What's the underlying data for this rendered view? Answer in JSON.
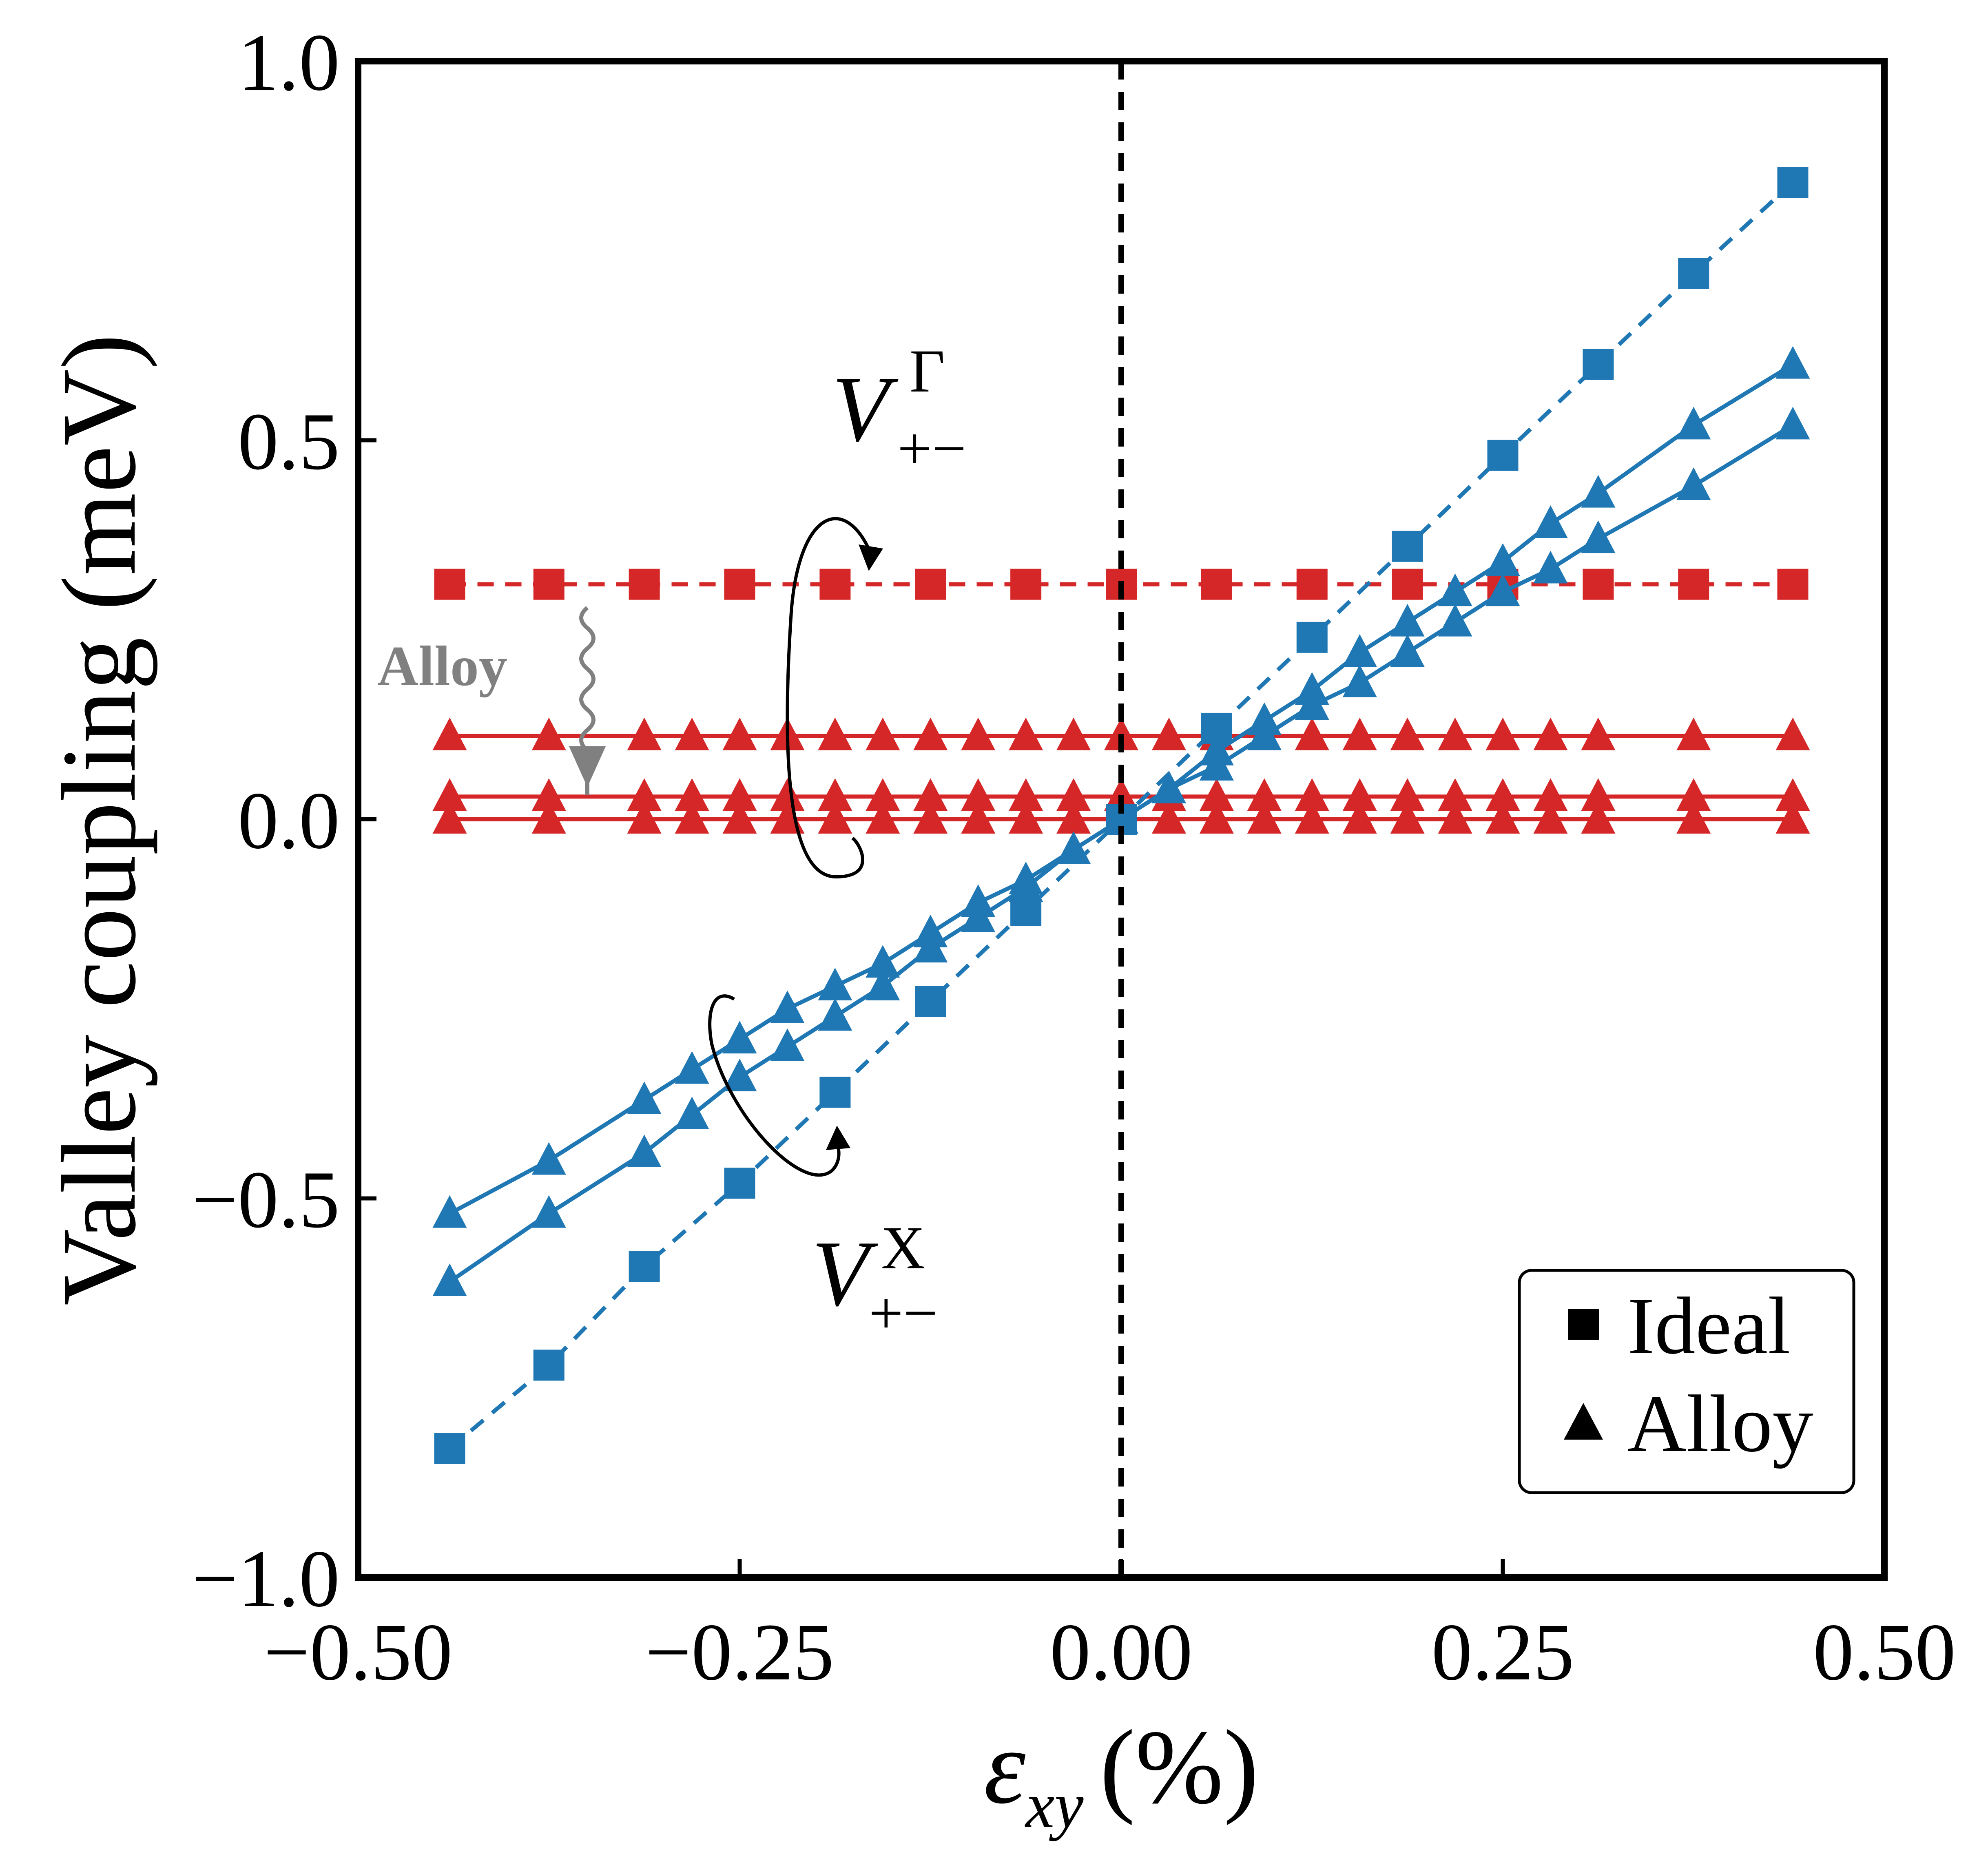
{
  "chart_data": {
    "type": "line",
    "title": "",
    "xlabel_symbol": "ε",
    "xlabel_subscript": "xy",
    "xlabel_unit": "(%)",
    "ylabel": "Valley coupling (meV)",
    "xlim": [
      -0.5,
      0.5
    ],
    "ylim": [
      -1.0,
      1.0
    ],
    "xticks": [
      -0.5,
      -0.25,
      0.0,
      0.25,
      0.5
    ],
    "xtick_labels": [
      "−0.50",
      "−0.25",
      "0.00",
      "0.25",
      "0.50"
    ],
    "yticks": [
      -1.0,
      -0.5,
      0.0,
      0.5,
      1.0
    ],
    "ytick_labels": [
      "−1.0",
      "−0.5",
      "0.0",
      "0.5",
      "1.0"
    ],
    "grid": false,
    "reference_line": {
      "x": 0.0,
      "style": "dashed",
      "color": "#000000"
    },
    "legend": {
      "position": "bottom-right",
      "entries": [
        {
          "label": "Ideal",
          "marker": "square"
        },
        {
          "label": "Alloy",
          "marker": "triangle"
        }
      ]
    },
    "annotations": {
      "gamma": {
        "main": "V",
        "sup": "Γ",
        "sub": "+−"
      },
      "x": {
        "main": "V",
        "sup": "X",
        "sub": "+−"
      },
      "alloy_note": "Alloy"
    },
    "colors": {
      "red": "#d62728",
      "blue": "#1f77b4",
      "gray": "#808080",
      "black": "#000000"
    },
    "series": [
      {
        "name": "V_Gamma Ideal",
        "group": "gamma",
        "marker": "square",
        "dash": "dashed",
        "color": "#d62728",
        "x": [
          -0.44,
          -0.375,
          -0.3125,
          -0.25,
          -0.1875,
          -0.125,
          -0.0625,
          0.0,
          0.0625,
          0.125,
          0.1875,
          0.25,
          0.3125,
          0.375,
          0.44
        ],
        "y": [
          0.31,
          0.31,
          0.31,
          0.31,
          0.31,
          0.31,
          0.31,
          0.31,
          0.31,
          0.31,
          0.31,
          0.31,
          0.31,
          0.31,
          0.31
        ]
      },
      {
        "name": "V_Gamma Alloy 1",
        "group": "gamma",
        "marker": "triangle",
        "dash": "solid",
        "color": "#d62728",
        "x": [
          -0.44,
          -0.375,
          -0.3125,
          -0.28125,
          -0.25,
          -0.21875,
          -0.1875,
          -0.15625,
          -0.125,
          -0.09375,
          -0.0625,
          -0.03125,
          0.0,
          0.03125,
          0.0625,
          0.09375,
          0.125,
          0.15625,
          0.1875,
          0.21875,
          0.25,
          0.28125,
          0.3125,
          0.375,
          0.44
        ],
        "y": [
          0.11,
          0.11,
          0.11,
          0.11,
          0.11,
          0.11,
          0.11,
          0.11,
          0.11,
          0.11,
          0.11,
          0.11,
          0.11,
          0.11,
          0.11,
          0.11,
          0.11,
          0.11,
          0.11,
          0.11,
          0.11,
          0.11,
          0.11,
          0.11,
          0.11
        ]
      },
      {
        "name": "V_Gamma Alloy 2",
        "group": "gamma",
        "marker": "triangle",
        "dash": "solid",
        "color": "#d62728",
        "x": [
          -0.44,
          -0.375,
          -0.3125,
          -0.28125,
          -0.25,
          -0.21875,
          -0.1875,
          -0.15625,
          -0.125,
          -0.09375,
          -0.0625,
          -0.03125,
          0.0,
          0.03125,
          0.0625,
          0.09375,
          0.125,
          0.15625,
          0.1875,
          0.21875,
          0.25,
          0.28125,
          0.3125,
          0.375,
          0.44
        ],
        "y": [
          0.03,
          0.03,
          0.03,
          0.03,
          0.03,
          0.03,
          0.03,
          0.03,
          0.03,
          0.03,
          0.03,
          0.03,
          0.03,
          0.03,
          0.03,
          0.03,
          0.03,
          0.03,
          0.03,
          0.03,
          0.03,
          0.03,
          0.03,
          0.03,
          0.03
        ]
      },
      {
        "name": "V_Gamma Alloy 3",
        "group": "gamma",
        "marker": "triangle",
        "dash": "solid",
        "color": "#d62728",
        "x": [
          -0.44,
          -0.375,
          -0.3125,
          -0.28125,
          -0.25,
          -0.21875,
          -0.1875,
          -0.15625,
          -0.125,
          -0.09375,
          -0.0625,
          -0.03125,
          0.0,
          0.03125,
          0.0625,
          0.09375,
          0.125,
          0.15625,
          0.1875,
          0.21875,
          0.25,
          0.28125,
          0.3125,
          0.375,
          0.44
        ],
        "y": [
          0.0,
          0.0,
          0.0,
          0.0,
          0.0,
          0.0,
          0.0,
          0.0,
          0.0,
          0.0,
          0.0,
          0.0,
          0.0,
          0.0,
          0.0,
          0.0,
          0.0,
          0.0,
          0.0,
          0.0,
          0.0,
          0.0,
          0.0,
          0.0,
          0.0
        ]
      },
      {
        "name": "V_X Ideal",
        "group": "x",
        "marker": "square",
        "dash": "dashed",
        "color": "#1f77b4",
        "x": [
          -0.44,
          -0.375,
          -0.3125,
          -0.25,
          -0.1875,
          -0.125,
          -0.0625,
          0.0,
          0.0625,
          0.125,
          0.1875,
          0.25,
          0.3125,
          0.375,
          0.44
        ],
        "y": [
          -0.83,
          -0.72,
          -0.59,
          -0.48,
          -0.36,
          -0.24,
          -0.12,
          0.0,
          0.12,
          0.24,
          0.36,
          0.48,
          0.6,
          0.72,
          0.84
        ]
      },
      {
        "name": "V_X Alloy 1",
        "group": "x",
        "marker": "triangle",
        "dash": "solid",
        "color": "#1f77b4",
        "x": [
          -0.44,
          -0.375,
          -0.3125,
          -0.28125,
          -0.25,
          -0.21875,
          -0.1875,
          -0.15625,
          -0.125,
          -0.09375,
          -0.0625,
          -0.03125,
          0.0,
          0.03125,
          0.0625,
          0.09375,
          0.125,
          0.15625,
          0.1875,
          0.21875,
          0.25,
          0.28125,
          0.3125,
          0.375,
          0.44
        ],
        "y": [
          -0.61,
          -0.52,
          -0.44,
          -0.39,
          -0.34,
          -0.3,
          -0.26,
          -0.22,
          -0.17,
          -0.13,
          -0.09,
          -0.04,
          0.0,
          0.04,
          0.09,
          0.13,
          0.17,
          0.22,
          0.26,
          0.3,
          0.34,
          0.39,
          0.43,
          0.52,
          0.6
        ]
      },
      {
        "name": "V_X Alloy 2",
        "group": "x",
        "marker": "triangle",
        "dash": "solid",
        "color": "#1f77b4",
        "x": [
          -0.44,
          -0.375,
          -0.3125,
          -0.28125,
          -0.25,
          -0.21875,
          -0.1875,
          -0.15625,
          -0.125,
          -0.09375,
          -0.0625,
          -0.03125,
          0.0,
          0.03125,
          0.0625,
          0.09375,
          0.125,
          0.15625,
          0.1875,
          0.21875,
          0.25,
          0.28125,
          0.3125,
          0.375,
          0.44
        ],
        "y": [
          -0.52,
          -0.45,
          -0.37,
          -0.33,
          -0.29,
          -0.25,
          -0.22,
          -0.19,
          -0.15,
          -0.11,
          -0.08,
          -0.04,
          0.0,
          0.04,
          0.07,
          0.11,
          0.15,
          0.18,
          0.22,
          0.26,
          0.3,
          0.33,
          0.37,
          0.44,
          0.52
        ]
      }
    ]
  }
}
